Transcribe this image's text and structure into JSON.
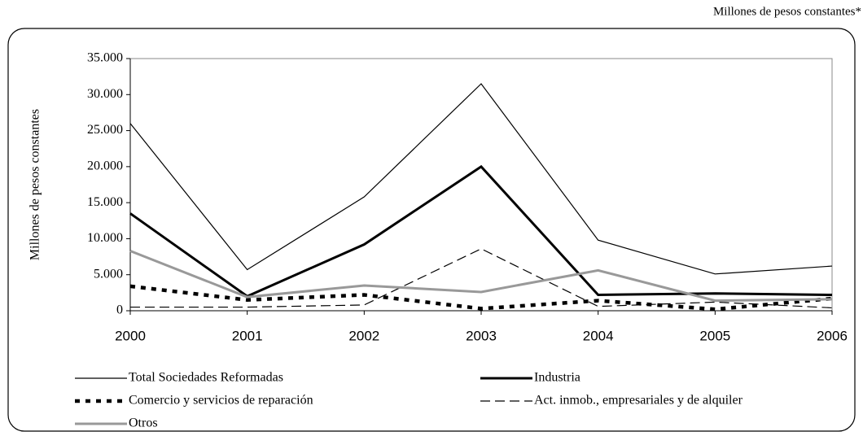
{
  "chart_data": {
    "type": "line",
    "units_note": "Millones de pesos constantes*",
    "y_label": "Millones de pesos constantes",
    "categories": [
      "2000",
      "2001",
      "2002",
      "2003",
      "2004",
      "2005",
      "2006"
    ],
    "series": [
      {
        "name": "Total Sociedades Reformadas",
        "color": "#000000",
        "line_style": "solid",
        "line_weight": "thin",
        "values": [
          26000,
          5700,
          15800,
          31500,
          9800,
          5100,
          6200
        ]
      },
      {
        "name": "Industria",
        "color": "#000000",
        "line_style": "solid",
        "line_weight": "thick",
        "values": [
          13500,
          2000,
          9200,
          20000,
          2200,
          2400,
          2200
        ]
      },
      {
        "name": "Comercio y servicios de reparación",
        "color": "#000000",
        "line_style": "dotted",
        "line_weight": "thick",
        "values": [
          3400,
          1500,
          2200,
          300,
          1400,
          200,
          1700
        ]
      },
      {
        "name": "Act. inmob., empresariales y de alquiler",
        "color": "#000000",
        "line_style": "dashed",
        "line_weight": "thin",
        "values": [
          500,
          500,
          800,
          8600,
          600,
          1200,
          400
        ]
      },
      {
        "name": "Otros",
        "color": "#999999",
        "line_style": "solid",
        "line_weight": "thick",
        "values": [
          8300,
          1900,
          3500,
          2600,
          5600,
          1400,
          1600
        ]
      }
    ],
    "ylim": [
      0,
      35000
    ],
    "yticks": [
      0,
      {
        "value": 5000,
        "label": "5.000"
      },
      {
        "value": 10000,
        "label": "10.000"
      },
      {
        "value": 15000,
        "label": "15.000"
      },
      {
        "value": 20000,
        "label": "20.000"
      },
      {
        "value": 25000,
        "label": "25.000"
      },
      {
        "value": 30000,
        "label": "30.000"
      },
      {
        "value": 35000,
        "label": "35.000"
      }
    ],
    "grid": false
  }
}
